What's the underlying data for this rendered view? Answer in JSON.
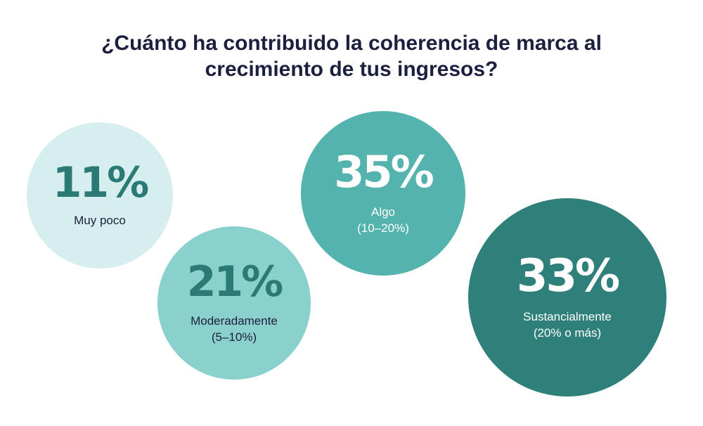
{
  "title": {
    "line1": "¿Cuánto ha contribuido la coherencia de marca al",
    "line2": "crecimiento de tus ingresos?"
  },
  "chart_data": {
    "type": "bubble",
    "title": "¿Cuánto ha contribuido la coherencia de marca al crecimiento de tus ingresos?",
    "unit": "%",
    "categories": [
      "Muy poco",
      "Moderadamente (5–10%)",
      "Algo (10–20%)",
      "Sustancialmente (20% o más)"
    ],
    "values": [
      11,
      21,
      35,
      33
    ],
    "bubbles": [
      {
        "value": 11,
        "pct_label": "11%",
        "label_lines": [
          "Muy poco"
        ],
        "color": "#d6efee",
        "text_color": "#2b7a76"
      },
      {
        "value": 21,
        "pct_label": "21%",
        "label_lines": [
          "Moderadamente",
          "(5–10%)"
        ],
        "color": "#8ad0cc",
        "text_color": "#2b7a76"
      },
      {
        "value": 35,
        "pct_label": "35%",
        "label_lines": [
          "Algo",
          "(10–20%)"
        ],
        "color": "#54b3ad",
        "text_color": "#ffffff"
      },
      {
        "value": 33,
        "pct_label": "33%",
        "label_lines": [
          "Sustancialmente",
          "(20% o más)"
        ],
        "color": "#2f7f7a",
        "text_color": "#ffffff"
      }
    ]
  },
  "colors": {
    "title": "#1c1f3d",
    "background": "#ffffff"
  }
}
